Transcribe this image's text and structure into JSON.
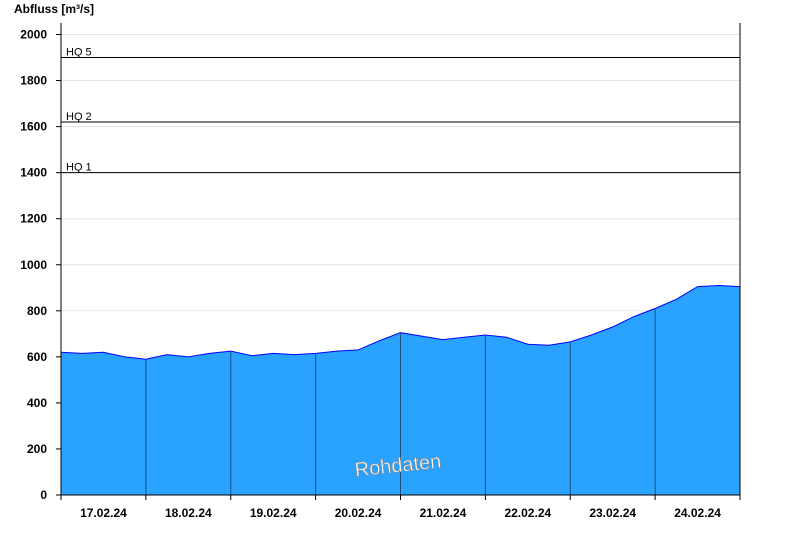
{
  "chart_data": {
    "type": "area",
    "ylabel": "Abfluss [m³/s]",
    "ylim": [
      0,
      2050
    ],
    "yticks": [
      0,
      200,
      400,
      600,
      800,
      1000,
      1200,
      1400,
      1600,
      1800,
      2000
    ],
    "xticks": [
      "17.02.24",
      "18.02.24",
      "19.02.24",
      "20.02.24",
      "21.02.24",
      "22.02.24",
      "23.02.24",
      "24.02.24"
    ],
    "x_days": 8,
    "grid": true,
    "reference_lines": [
      {
        "label": "HQ 1",
        "value": 1400
      },
      {
        "label": "HQ 2",
        "value": 1620
      },
      {
        "label": "HQ 5",
        "value": 1900
      }
    ],
    "fill_color": "#29a3ff",
    "line_color": "#0000ff",
    "series": [
      {
        "x": [
          0,
          0.25,
          0.5,
          0.75,
          1.0,
          1.25,
          1.5,
          1.75,
          2.0,
          2.25,
          2.5,
          2.75,
          3.0,
          3.25,
          3.5,
          3.75,
          4.0,
          4.25,
          4.5,
          4.75,
          5.0,
          5.25,
          5.5,
          5.75,
          6.0,
          6.25,
          6.5,
          6.75,
          7.0,
          7.25,
          7.5,
          7.75,
          8.0
        ],
        "values": [
          620,
          615,
          620,
          600,
          590,
          610,
          600,
          615,
          625,
          605,
          615,
          610,
          615,
          625,
          630,
          670,
          705,
          690,
          675,
          685,
          695,
          685,
          655,
          650,
          665,
          695,
          730,
          775,
          810,
          850,
          905,
          910,
          905
        ]
      }
    ],
    "annotation": "Rohdaten"
  }
}
